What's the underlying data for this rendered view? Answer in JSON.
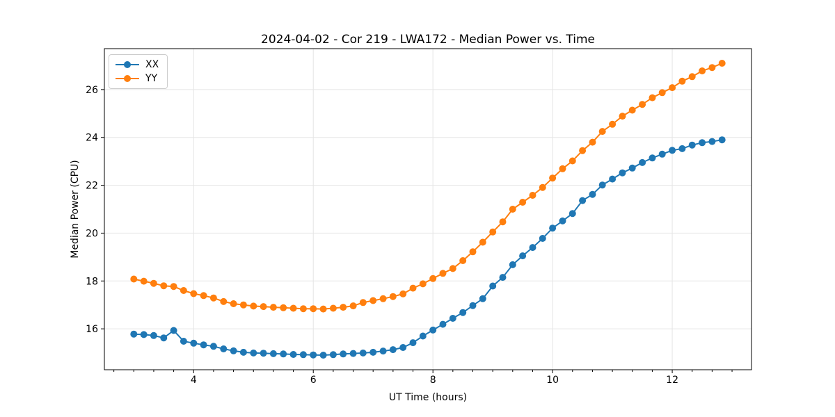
{
  "chart_data": {
    "type": "line",
    "title": "2024-04-02 - Cor 219 - LWA172 - Median Power vs. Time",
    "xlabel": "UT Time (hours)",
    "ylabel": "Median Power (CPU)",
    "xlim": [
      2.508,
      13.325
    ],
    "ylim": [
      14.29,
      27.71
    ],
    "xticks": [
      4,
      6,
      8,
      10,
      12
    ],
    "yticks": [
      16,
      18,
      20,
      22,
      24,
      26
    ],
    "x_minor_step": 0.33333,
    "grid": true,
    "grid_color": "#e5e5e5",
    "legend_position": "upper left",
    "x": [
      3.0,
      3.167,
      3.333,
      3.5,
      3.667,
      3.833,
      4.0,
      4.167,
      4.333,
      4.5,
      4.667,
      4.833,
      5.0,
      5.167,
      5.333,
      5.5,
      5.667,
      5.833,
      6.0,
      6.167,
      6.333,
      6.5,
      6.667,
      6.833,
      7.0,
      7.167,
      7.333,
      7.5,
      7.667,
      7.833,
      8.0,
      8.167,
      8.333,
      8.5,
      8.667,
      8.833,
      9.0,
      9.167,
      9.333,
      9.5,
      9.667,
      9.833,
      10.0,
      10.167,
      10.333,
      10.5,
      10.667,
      10.833,
      11.0,
      11.167,
      11.333,
      11.5,
      11.667,
      11.833,
      12.0,
      12.167,
      12.333,
      12.5,
      12.667,
      12.833
    ],
    "series": [
      {
        "name": "XX",
        "color": "#1f77b4",
        "values": [
          15.78,
          15.76,
          15.72,
          15.62,
          15.93,
          15.48,
          15.4,
          15.33,
          15.27,
          15.16,
          15.08,
          15.02,
          14.99,
          14.98,
          14.96,
          14.95,
          14.93,
          14.92,
          14.91,
          14.9,
          14.92,
          14.95,
          14.97,
          14.99,
          15.02,
          15.07,
          15.13,
          15.22,
          15.42,
          15.7,
          15.95,
          16.19,
          16.44,
          16.68,
          16.97,
          17.26,
          17.79,
          18.15,
          18.68,
          19.05,
          19.4,
          19.78,
          20.21,
          20.51,
          20.82,
          21.36,
          21.62,
          22.01,
          22.26,
          22.52,
          22.72,
          22.95,
          23.14,
          23.3,
          23.46,
          23.53,
          23.68,
          23.78,
          23.83,
          23.9
        ]
      },
      {
        "name": "YY",
        "color": "#ff7f0e",
        "values": [
          18.08,
          17.99,
          17.9,
          17.8,
          17.77,
          17.6,
          17.47,
          17.39,
          17.29,
          17.14,
          17.05,
          17.0,
          16.95,
          16.93,
          16.9,
          16.88,
          16.86,
          16.84,
          16.84,
          16.83,
          16.86,
          16.9,
          16.96,
          17.1,
          17.18,
          17.26,
          17.35,
          17.46,
          17.7,
          17.88,
          18.1,
          18.32,
          18.52,
          18.85,
          19.22,
          19.62,
          20.05,
          20.47,
          21.0,
          21.29,
          21.58,
          21.91,
          22.3,
          22.69,
          23.02,
          23.45,
          23.8,
          24.25,
          24.55,
          24.89,
          25.14,
          25.38,
          25.66,
          25.87,
          26.08,
          26.35,
          26.54,
          26.78,
          26.92,
          27.1
        ]
      }
    ]
  }
}
